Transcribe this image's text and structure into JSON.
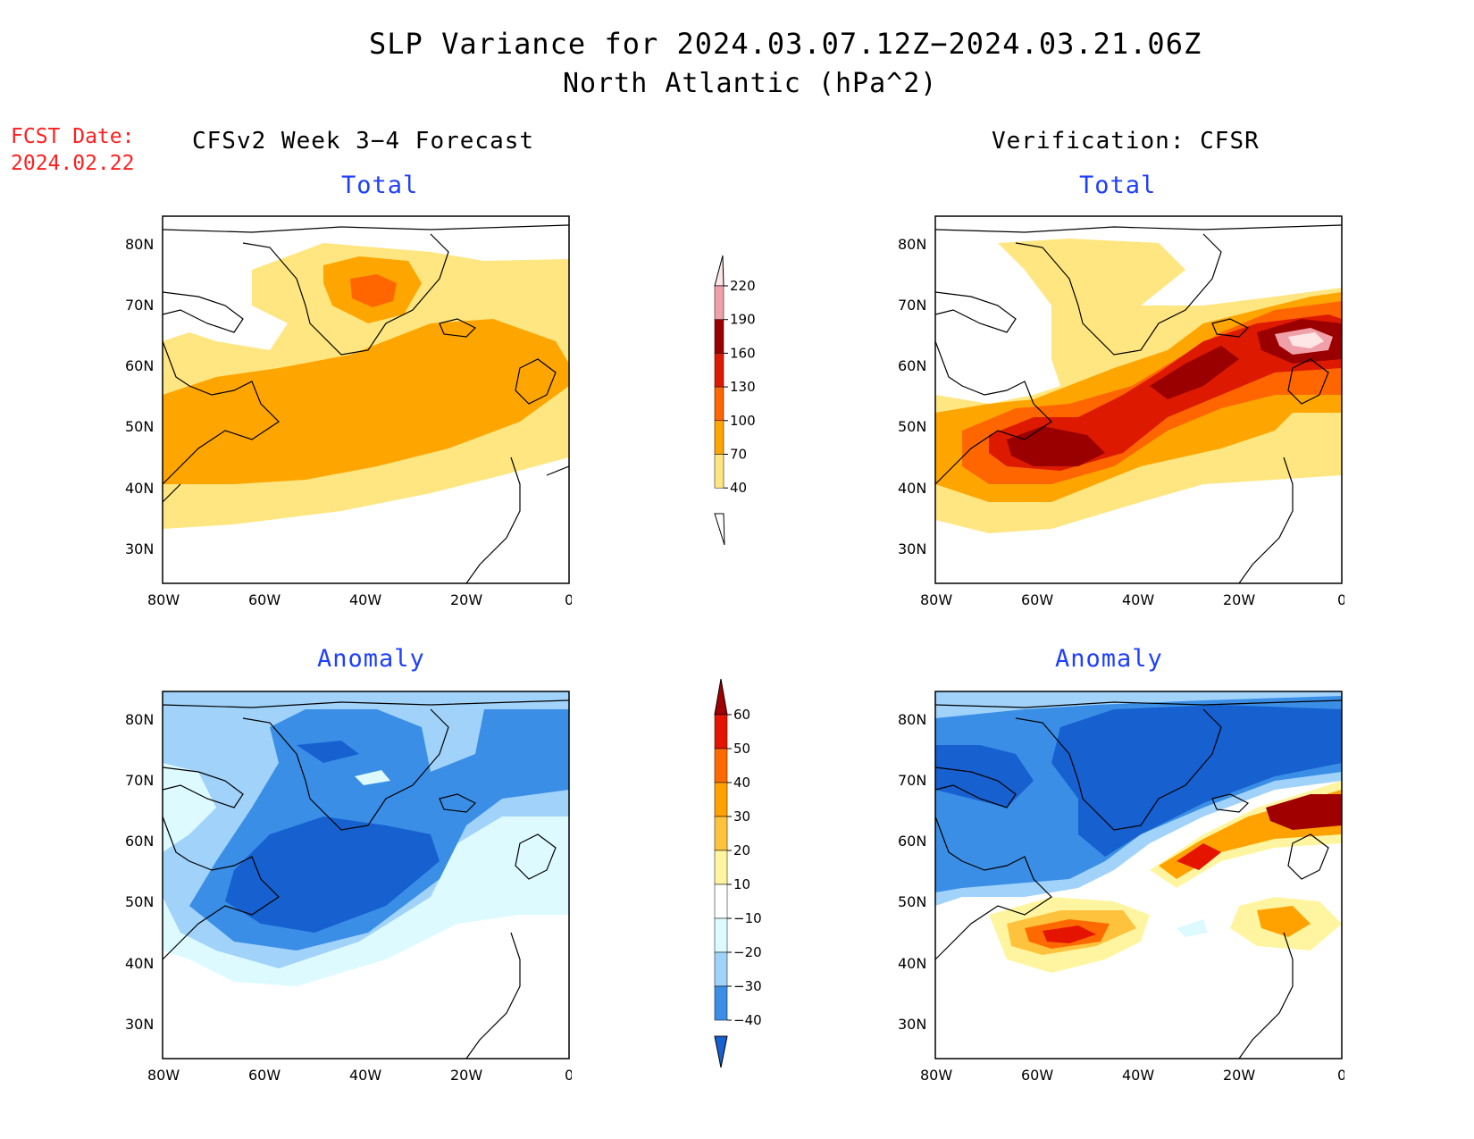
{
  "header": {
    "title": "SLP Variance for 2024.03.07.12Z−2024.03.21.06Z",
    "subtitle": "North Atlantic (hPa^2)",
    "fcst_label": "FCST Date:",
    "fcst_date": "2024.02.22",
    "left_column": "CFSv2 Week 3−4 Forecast",
    "right_column": "Verification: CFSR"
  },
  "panels": {
    "forecast_total": {
      "title": "Total"
    },
    "verification_total": {
      "title": "Total"
    },
    "forecast_anomaly": {
      "title": "Anomaly"
    },
    "verification_anomaly": {
      "title": "Anomaly"
    }
  },
  "axes": {
    "lat_labels": [
      "80N",
      "70N",
      "60N",
      "50N",
      "40N",
      "30N"
    ],
    "lon_labels": [
      "80W",
      "60W",
      "40W",
      "20W",
      "0"
    ]
  },
  "colorbars": {
    "total": {
      "levels": [
        "220",
        "190",
        "160",
        "130",
        "100",
        "70",
        "40"
      ],
      "colors": [
        "#ffe6e6",
        "#f0a0a8",
        "#9a0000",
        "#dd1a00",
        "#ff6600",
        "#ffa500",
        "#ffe680"
      ]
    },
    "anomaly": {
      "levels": [
        "60",
        "50",
        "40",
        "30",
        "20",
        "10",
        "−10",
        "−20",
        "−30",
        "−40"
      ],
      "colors": [
        "#a00000",
        "#e41400",
        "#ff6a00",
        "#ffa200",
        "#ffc23c",
        "#fff5a0",
        "#ffffff",
        "#dcfaff",
        "#a0d2fa",
        "#3a8ee6",
        "#1660d0"
      ]
    }
  },
  "map_colors": {
    "land_outline": "#000000",
    "total_light": "#ffe680",
    "total_orange": "#ffa500",
    "total_dorange": "#ff6600",
    "total_red": "#dd1a00",
    "total_dred": "#9a0000",
    "total_pink": "#ffe6e6",
    "anom_pale": "#dcfaff",
    "anom_light": "#a0d2fa",
    "anom_mid": "#3a8ee6",
    "anom_dark": "#1660d0",
    "anom_yellow": "#fff5a0",
    "anom_lorange": "#ffc23c",
    "anom_orange": "#ffa200",
    "anom_dorange": "#ff6a00",
    "anom_red": "#e41400",
    "anom_dred": "#a00000"
  }
}
